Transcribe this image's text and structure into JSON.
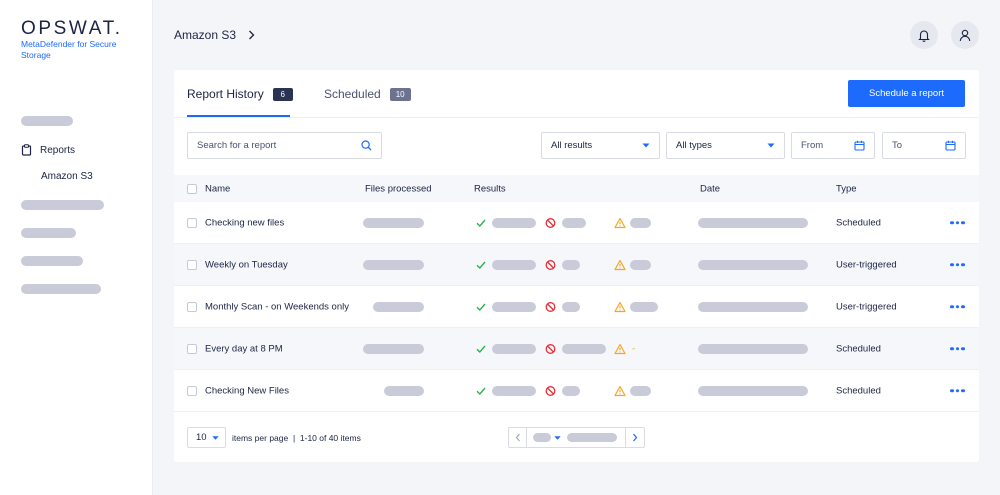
{
  "sidebar": {
    "logo": "OPSWAT.",
    "product": "MetaDefender for Secure Storage",
    "reports_label": "Reports",
    "sub_item": "Amazon S3"
  },
  "header": {
    "breadcrumb": "Amazon S3"
  },
  "tabs": [
    {
      "label": "Report History",
      "count": "6"
    },
    {
      "label": "Scheduled",
      "count": "10"
    }
  ],
  "primary_button": "Schedule a report",
  "filters": {
    "search_placeholder": "Search for a report",
    "results": "All results",
    "types": "All types",
    "from": "From",
    "to": "To"
  },
  "columns": [
    "Name",
    "Files processed",
    "Results",
    "Date",
    "Type"
  ],
  "rows": [
    {
      "name": "Checking new files",
      "type": "Scheduled"
    },
    {
      "name": "Weekly on Tuesday",
      "type": "User-triggered"
    },
    {
      "name": "Monthly Scan - on Weekends only",
      "type": "User-triggered"
    },
    {
      "name": "Every day at 8 PM",
      "type": "Scheduled",
      "warning_text": "-"
    },
    {
      "name": "Checking New Files",
      "type": "Scheduled"
    }
  ],
  "footer": {
    "per_page": "10",
    "items_text": "items per page  |  1-10 of 40 items"
  },
  "colors": {
    "accent": "#1d6bfc",
    "success": "#2bb24c",
    "blocked": "#e5303a",
    "warning": "#f5a623",
    "placeholder": "#c9ccd8"
  }
}
